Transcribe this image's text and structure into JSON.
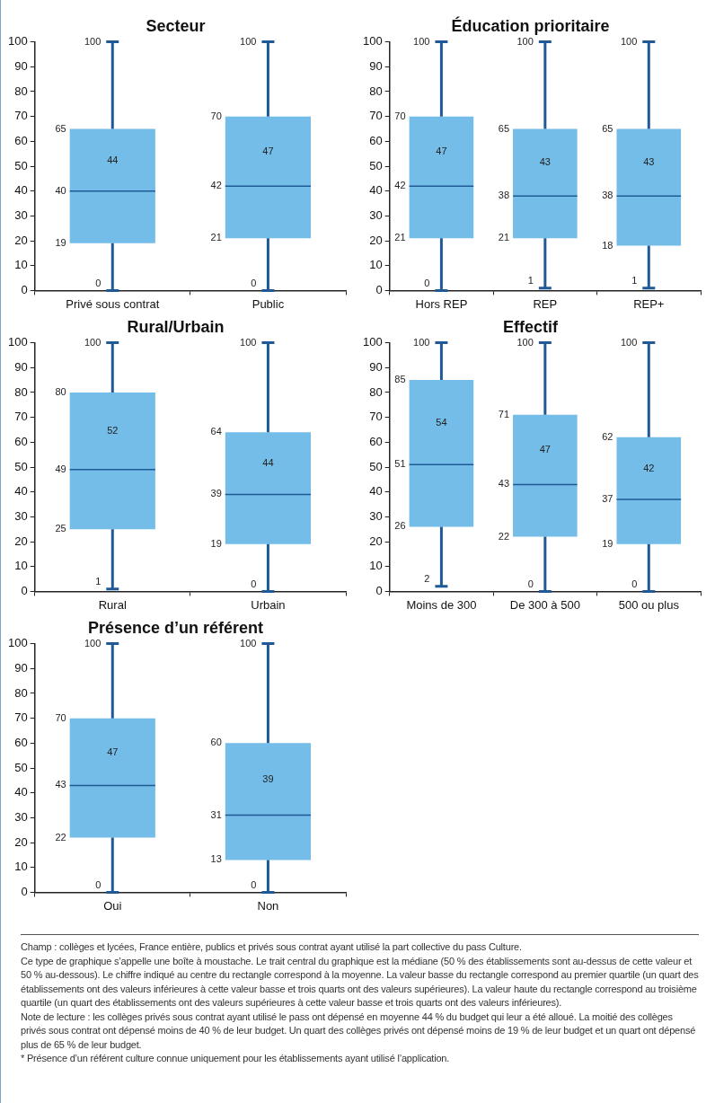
{
  "chart_data": [
    {
      "type": "box",
      "title": "Secteur",
      "categories": [
        "Privé sous contrat",
        "Public"
      ],
      "ylim": [
        0,
        100
      ],
      "yticks": [
        0,
        10,
        20,
        30,
        40,
        50,
        60,
        70,
        80,
        90,
        100
      ],
      "grid": false,
      "legend": false,
      "series": [
        {
          "color": "#74bde8",
          "boxes": [
            {
              "low": 0,
              "q1": 19,
              "median": 40,
              "q3": 65,
              "high": 100
            },
            {
              "low": 0,
              "q1": 21,
              "median": 42,
              "q3": 70,
              "high": 100
            }
          ]
        }
      ],
      "annotations": [
        {
          "text": "0",
          "x": "Privé sous contrat",
          "y": 0
        },
        {
          "text": "100",
          "x": "Privé sous contrat",
          "y": 100
        },
        {
          "text": "0",
          "x": "Public",
          "y": 0
        },
        {
          "text": "100",
          "x": "Public",
          "y": 100
        },
        "44",
        "47",
        "19",
        "40",
        "65",
        "21",
        "42",
        "70"
      ]
    },
    {
      "type": "box",
      "title": "Éducation prioritaire",
      "categories": [
        "Hors REP",
        "REP",
        "REP+"
      ],
      "ylim": [
        0,
        100
      ],
      "yticks": [
        0,
        10,
        20,
        30,
        40,
        50,
        60,
        70,
        80,
        90,
        100
      ],
      "grid": false,
      "legend": false,
      "series": [
        {
          "color": "#74bde8",
          "boxes": [
            {
              "low": 0,
              "q1": 21,
              "median": 42,
              "q3": 70,
              "high": 100
            },
            {
              "low": 1,
              "q1": 21,
              "median": 38,
              "q3": 65,
              "high": 100
            },
            {
              "low": 1,
              "q1": 18,
              "median": 38,
              "q3": 65,
              "high": 100
            }
          ]
        }
      ],
      "annotations": [
        {
          "text": "0",
          "x": "Hors REP",
          "y": 0
        },
        {
          "text": "100",
          "x": "Hors REP",
          "y": 100
        },
        {
          "text": "1",
          "x": "REP",
          "y": 1
        },
        {
          "text": "100",
          "x": "REP",
          "y": 100
        },
        {
          "text": "1",
          "x": "REP+",
          "y": 1
        },
        {
          "text": "100",
          "x": "REP+",
          "y": 100
        },
        "47",
        "43",
        "43",
        "21",
        "42",
        "70",
        "21",
        "38",
        "65",
        "18",
        "38",
        "65"
      ]
    },
    {
      "type": "box",
      "title": "Rural/Urbain",
      "categories": [
        "Rural",
        "Urbain"
      ],
      "ylim": [
        0,
        100
      ],
      "yticks": [
        0,
        10,
        20,
        30,
        40,
        50,
        60,
        70,
        80,
        90,
        100
      ],
      "grid": false,
      "legend": false,
      "series": [
        {
          "color": "#74bde8",
          "boxes": [
            {
              "low": 1,
              "q1": 25,
              "median": 49,
              "q3": 80,
              "high": 100
            },
            {
              "low": 0,
              "q1": 19,
              "median": 39,
              "q3": 64,
              "high": 100
            }
          ]
        }
      ],
      "annotations": [
        {
          "text": "1",
          "x": "Rural",
          "y": 1
        },
        {
          "text": "100",
          "x": "Rural",
          "y": 100
        },
        {
          "text": "0",
          "x": "Urbain",
          "y": 0
        },
        {
          "text": "100",
          "x": "Urbain",
          "y": 100
        },
        "52",
        "44",
        "25",
        "49",
        "80",
        "19",
        "39",
        "64"
      ]
    },
    {
      "type": "box",
      "title": "Effectif",
      "categories": [
        "Moins de 300",
        "De 300 à 500",
        "500 ou plus"
      ],
      "ylim": [
        0,
        100
      ],
      "yticks": [
        0,
        10,
        20,
        30,
        40,
        50,
        60,
        70,
        80,
        90,
        100
      ],
      "grid": false,
      "legend": false,
      "series": [
        {
          "color": "#74bde8",
          "boxes": [
            {
              "low": 2,
              "q1": 26,
              "median": 51,
              "q3": 85,
              "high": 100
            },
            {
              "low": 0,
              "q1": 22,
              "median": 43,
              "q3": 71,
              "high": 100
            },
            {
              "low": 0,
              "q1": 19,
              "median": 37,
              "q3": 62,
              "high": 100
            }
          ]
        }
      ],
      "annotations": [
        {
          "text": "2",
          "x": "Moins de 300",
          "y": 2
        },
        {
          "text": "100",
          "x": "Moins de 300",
          "y": 100
        },
        {
          "text": "0",
          "x": "De 300 à 500",
          "y": 0
        },
        {
          "text": "100",
          "x": "De 300 à 500",
          "y": 100
        },
        {
          "text": "0",
          "x": "500 ou plus",
          "y": 0
        },
        {
          "text": "100",
          "x": "500 ou plus",
          "y": 100
        },
        "54",
        "47",
        "42",
        "26",
        "51",
        "85",
        "22",
        "43",
        "71",
        "19",
        "37",
        "62"
      ]
    },
    {
      "type": "box",
      "title": "Présence d’un référent",
      "categories": [
        "Oui",
        "Non"
      ],
      "ylim": [
        0,
        100
      ],
      "yticks": [
        0,
        10,
        20,
        30,
        40,
        50,
        60,
        70,
        80,
        90,
        100
      ],
      "grid": false,
      "legend": false,
      "series": [
        {
          "color": "#74bde8",
          "boxes": [
            {
              "low": 0,
              "q1": 22,
              "median": 43,
              "q3": 70,
              "high": 100
            },
            {
              "low": 0,
              "q1": 13,
              "median": 31,
              "q3": 60,
              "high": 100
            }
          ]
        }
      ],
      "annotations": [
        {
          "text": "0",
          "x": "Oui",
          "y": 0
        },
        {
          "text": "100",
          "x": "Oui",
          "y": 100
        },
        {
          "text": "0",
          "x": "Non",
          "y": 0
        },
        {
          "text": "100",
          "x": "Non",
          "y": 100
        },
        "47",
        "39",
        "22",
        "43",
        "70",
        "13",
        "31",
        "60",
        "Champ : collèges et lycées, France entière, publics et privés sous contrat ayant utilisé la part collective du pass Culture.",
        "Ce type de graphique s’appelle une boîte à moustache. Le trait central du graphique est la médiane (50 % des établissements sont au-dessus de cette valeur et 50 % au-dessous). Le chiffre indiqué au centre du rectangle correspond à la moyenne. La valeur basse du rectangle correspond au premier quartile (un quart des établissements ont des valeurs inférieures à cette valeur basse et trois quarts ont des valeurs supérieures). La valeur haute du rectangle correspond au troisième quartile (un quart des établissements ont des valeurs supérieures à cette valeur basse et trois quarts ont des valeurs inférieures).",
        "Note de lecture : les collèges privés sous contrat ayant utilisé le pass ont dépensé en moyenne 44 % du budget qui leur a été alloué. La moitié des collèges privés sous contrat ont dépensé moins de 40 % de leur budget. Un quart des collèges privés ont dépensé moins de 19 % de leur budget et un quart ont dépensé plus de 65 % de leur budget.",
        "* Présence d’un référent culture connue uniquement pour les établissements ayant utilisé l’application."
      ]
    }
  ]
}
